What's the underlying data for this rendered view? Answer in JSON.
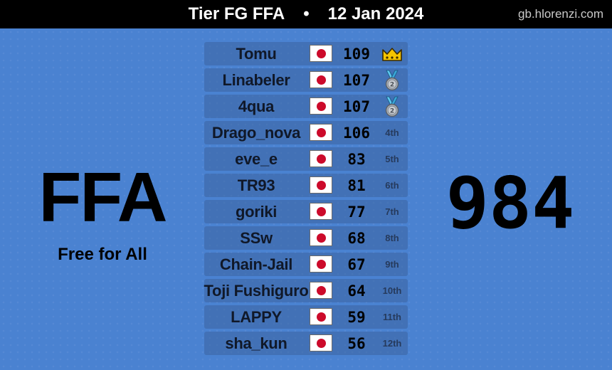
{
  "header": {
    "event": "Tier FG FFA",
    "separator": "•",
    "date": "12 Jan 2024",
    "site": "gb.hlorenzi.com"
  },
  "mode": {
    "short": "FFA",
    "long": "Free for All"
  },
  "total_score": "984",
  "colors": {
    "background": "#4a82d1",
    "row": "#3c64a0",
    "flag_red": "#cc0a2a",
    "crown": "#f5c400",
    "medal_ribbon": "#5cc8f0",
    "medal_disc": "#a8adb4"
  },
  "players": [
    {
      "name": "Tomu",
      "flag": "japan-flag",
      "score": "109",
      "rank": "",
      "badge": "crown-icon"
    },
    {
      "name": "Linabeler",
      "flag": "japan-flag",
      "score": "107",
      "rank": "",
      "badge": "silver-medal-icon"
    },
    {
      "name": "4qua",
      "flag": "japan-flag",
      "score": "107",
      "rank": "",
      "badge": "silver-medal-icon"
    },
    {
      "name": "Drago_nova",
      "flag": "japan-flag",
      "score": "106",
      "rank": "4th"
    },
    {
      "name": "eve_e",
      "flag": "japan-flag",
      "score": "83",
      "rank": "5th"
    },
    {
      "name": "TR93",
      "flag": "japan-flag",
      "score": "81",
      "rank": "6th"
    },
    {
      "name": "goriki",
      "flag": "japan-flag",
      "score": "77",
      "rank": "7th"
    },
    {
      "name": "SSw",
      "flag": "japan-flag",
      "score": "68",
      "rank": "8th"
    },
    {
      "name": "Chain-Jail",
      "flag": "japan-flag",
      "score": "67",
      "rank": "9th"
    },
    {
      "name": "Toji Fushiguro",
      "flag": "japan-flag",
      "score": "64",
      "rank": "10th"
    },
    {
      "name": "LAPPY",
      "flag": "japan-flag",
      "score": "59",
      "rank": "11th"
    },
    {
      "name": "sha_kun",
      "flag": "japan-flag",
      "score": "56",
      "rank": "12th"
    }
  ]
}
